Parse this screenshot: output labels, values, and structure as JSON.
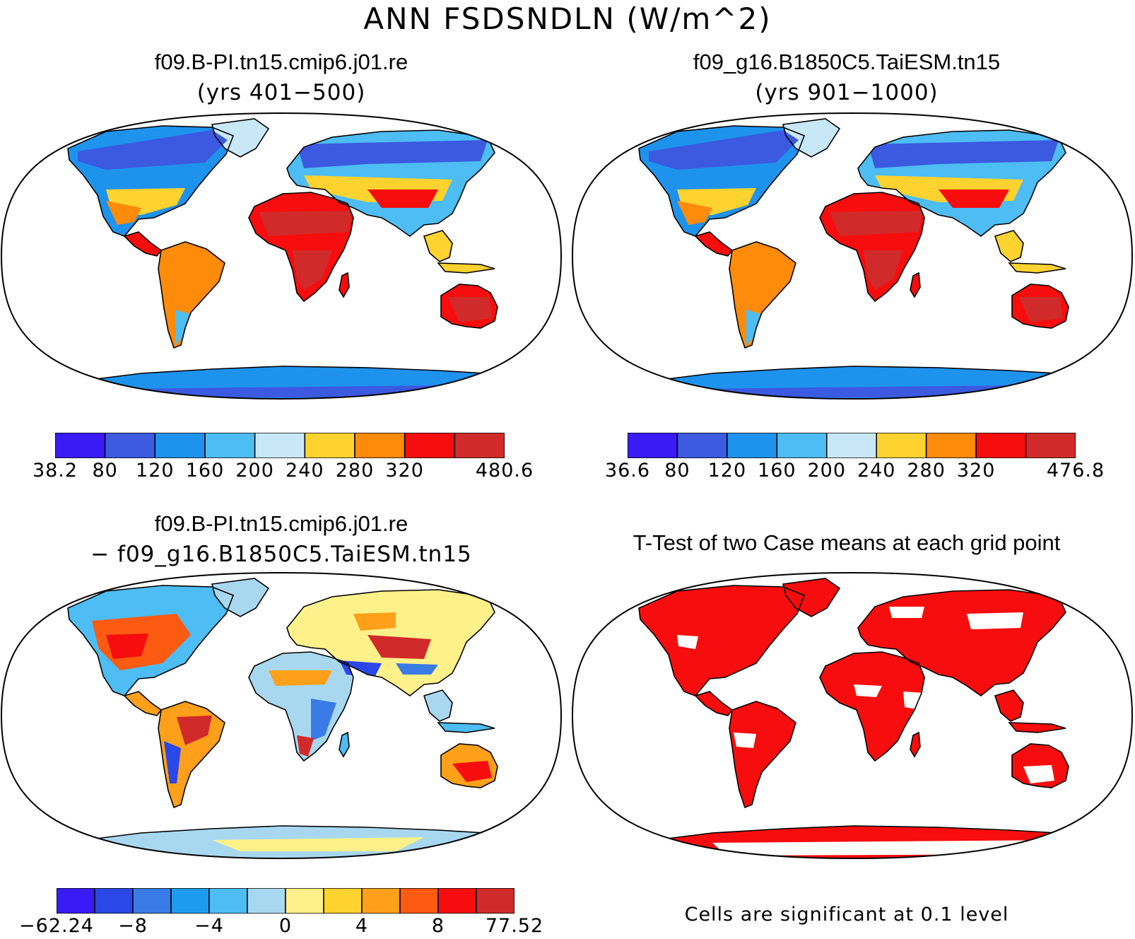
{
  "title": "ANN FSDSNDLN (W/m^2)",
  "colors": {
    "seq": [
      "#3a1bf5",
      "#3b5ae0",
      "#1e93ee",
      "#4dbdf3",
      "#c8e8f7",
      "#fed22f",
      "#fe8b0a",
      "#f70d0d",
      "#d12a2a"
    ],
    "diff": [
      "#3a1bf5",
      "#2a47e8",
      "#3a7be8",
      "#1d9cef",
      "#4dbdf3",
      "#a8d8f0",
      "#fff18a",
      "#fed22f",
      "#fea01a",
      "#fd5a12",
      "#f70d0d",
      "#d12a2a"
    ],
    "sig": "#f70d0d"
  },
  "panels": {
    "top_left": {
      "title": "f09.B-PI.tn15.cmip6.j01.re",
      "subtitle": "(yrs 401−500)",
      "colorbar": {
        "palette": "seq",
        "labels": [
          [
            "38.2",
            0
          ],
          [
            "80",
            1
          ],
          [
            "120",
            2
          ],
          [
            "160",
            3
          ],
          [
            "200",
            4
          ],
          [
            "240",
            5
          ],
          [
            "280",
            6
          ],
          [
            "320",
            7
          ],
          [
            "480.6",
            9
          ]
        ]
      }
    },
    "top_right": {
      "title": "f09_g16.B1850C5.TaiESM.tn15",
      "subtitle": "(yrs 901−1000)",
      "colorbar": {
        "palette": "seq",
        "labels": [
          [
            "36.6",
            0
          ],
          [
            "80",
            1
          ],
          [
            "120",
            2
          ],
          [
            "160",
            3
          ],
          [
            "200",
            4
          ],
          [
            "240",
            5
          ],
          [
            "280",
            6
          ],
          [
            "320",
            7
          ],
          [
            "476.8",
            9
          ]
        ]
      }
    },
    "bottom_left": {
      "title": "f09.B-PI.tn15.cmip6.j01.re",
      "subtitle": "− f09_g16.B1850C5.TaiESM.tn15",
      "colorbar": {
        "palette": "diff",
        "labels": [
          [
            "−62.24",
            0
          ],
          [
            "−8",
            2
          ],
          [
            "−4",
            4
          ],
          [
            "0",
            6
          ],
          [
            "4",
            8
          ],
          [
            "8",
            10
          ],
          [
            "77.52",
            12
          ]
        ]
      }
    },
    "bottom_right": {
      "title": "T-Test of two Case means at each grid point",
      "note": "Cells are significant at 0.1 level"
    }
  }
}
